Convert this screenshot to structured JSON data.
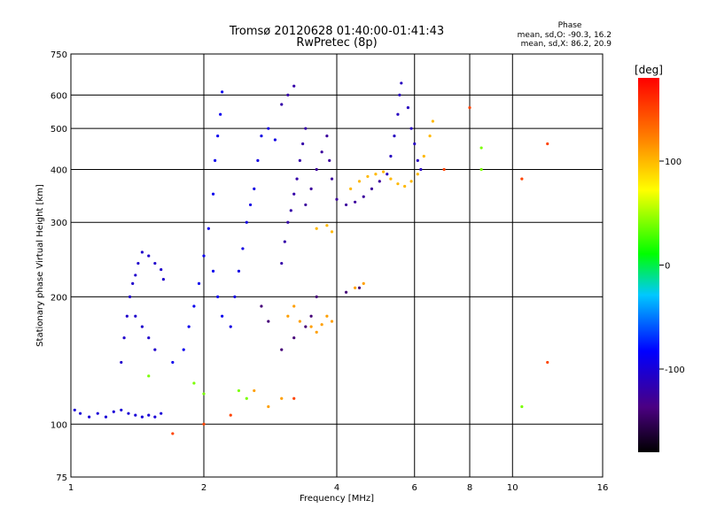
{
  "header": {
    "title": "Tromsø 20120628 01:40:00-01:41:43",
    "subtitle": "RwPretec (8p)",
    "phase_title": "Phase",
    "phase_line_o": "mean, sd,O: -90.3, 16.2",
    "phase_line_x": "mean, sd,X:  86.2, 20.9"
  },
  "chart_data": {
    "type": "scatter",
    "xlabel": "Frequency [MHz]",
    "ylabel": "Stationary phase Virtual Height [km]",
    "x_scale": "log",
    "y_scale": "log",
    "xlim": [
      1,
      16
    ],
    "ylim": [
      75,
      750
    ],
    "x_ticks": [
      1,
      2,
      4,
      6,
      8,
      10,
      16
    ],
    "y_ticks": [
      75,
      100,
      200,
      300,
      400,
      500,
      600,
      750
    ],
    "grid": true,
    "grid_x": [
      2,
      4,
      6,
      8,
      10
    ],
    "grid_y": [
      100,
      200,
      300,
      400,
      500,
      600
    ],
    "colorbar": {
      "label": "[deg]",
      "range": [
        -180,
        180
      ],
      "ticks": [
        100,
        0,
        -100
      ],
      "colormap": "rainbow"
    },
    "series": [
      {
        "color_deg": -100,
        "points": [
          [
            1.02,
            108
          ],
          [
            1.05,
            106
          ],
          [
            1.1,
            104
          ],
          [
            1.15,
            106
          ],
          [
            1.2,
            104
          ],
          [
            1.25,
            107
          ],
          [
            1.3,
            108
          ],
          [
            1.35,
            106
          ],
          [
            1.4,
            105
          ],
          [
            1.45,
            104
          ],
          [
            1.5,
            105
          ],
          [
            1.55,
            104
          ],
          [
            1.6,
            106
          ]
        ]
      },
      {
        "color_deg": -105,
        "points": [
          [
            1.3,
            140
          ],
          [
            1.32,
            160
          ],
          [
            1.34,
            180
          ],
          [
            1.36,
            200
          ],
          [
            1.38,
            215
          ],
          [
            1.4,
            225
          ],
          [
            1.42,
            240
          ],
          [
            1.45,
            255
          ],
          [
            1.5,
            250
          ],
          [
            1.55,
            240
          ],
          [
            1.6,
            232
          ],
          [
            1.62,
            220
          ],
          [
            1.4,
            180
          ],
          [
            1.45,
            170
          ],
          [
            1.5,
            160
          ],
          [
            1.55,
            150
          ]
        ]
      },
      {
        "color_deg": -90,
        "points": [
          [
            1.7,
            140
          ],
          [
            1.8,
            150
          ],
          [
            1.85,
            170
          ],
          [
            1.9,
            190
          ],
          [
            1.95,
            215
          ],
          [
            2.0,
            250
          ],
          [
            2.05,
            290
          ],
          [
            2.1,
            350
          ],
          [
            2.12,
            420
          ],
          [
            2.15,
            480
          ],
          [
            2.18,
            540
          ],
          [
            2.2,
            610
          ],
          [
            2.1,
            230
          ],
          [
            2.15,
            200
          ],
          [
            2.2,
            180
          ]
        ]
      },
      {
        "color_deg": -95,
        "points": [
          [
            2.3,
            170
          ],
          [
            2.35,
            200
          ],
          [
            2.4,
            230
          ],
          [
            2.45,
            260
          ],
          [
            2.5,
            300
          ],
          [
            2.55,
            330
          ],
          [
            2.6,
            360
          ],
          [
            2.65,
            420
          ],
          [
            2.7,
            480
          ],
          [
            2.8,
            500
          ],
          [
            2.9,
            470
          ]
        ]
      },
      {
        "color_deg": -120,
        "points": [
          [
            3.0,
            240
          ],
          [
            3.05,
            270
          ],
          [
            3.1,
            300
          ],
          [
            3.15,
            320
          ],
          [
            3.2,
            350
          ],
          [
            3.25,
            380
          ],
          [
            3.3,
            420
          ],
          [
            3.35,
            460
          ],
          [
            3.4,
            500
          ],
          [
            3.0,
            570
          ],
          [
            3.1,
            600
          ],
          [
            3.2,
            630
          ]
        ]
      },
      {
        "color_deg": -125,
        "points": [
          [
            3.4,
            330
          ],
          [
            3.5,
            360
          ],
          [
            3.6,
            400
          ],
          [
            3.7,
            440
          ],
          [
            3.8,
            480
          ],
          [
            3.85,
            420
          ],
          [
            3.9,
            380
          ],
          [
            4.0,
            340
          ],
          [
            4.2,
            330
          ],
          [
            4.4,
            335
          ],
          [
            4.6,
            345
          ],
          [
            4.8,
            360
          ],
          [
            5.0,
            375
          ]
        ]
      },
      {
        "color_deg": -110,
        "points": [
          [
            5.2,
            390
          ],
          [
            5.3,
            430
          ],
          [
            5.4,
            480
          ],
          [
            5.5,
            540
          ],
          [
            5.55,
            600
          ],
          [
            5.6,
            640
          ],
          [
            5.8,
            560
          ],
          [
            5.9,
            500
          ],
          [
            6.0,
            460
          ],
          [
            6.1,
            420
          ],
          [
            6.2,
            400
          ]
        ]
      },
      {
        "color_deg": 100,
        "points": [
          [
            4.3,
            360
          ],
          [
            4.5,
            375
          ],
          [
            4.7,
            385
          ],
          [
            4.9,
            390
          ],
          [
            5.1,
            395
          ],
          [
            5.3,
            380
          ],
          [
            5.5,
            370
          ],
          [
            5.7,
            365
          ],
          [
            5.9,
            375
          ],
          [
            6.1,
            390
          ],
          [
            6.3,
            430
          ],
          [
            6.5,
            480
          ],
          [
            6.6,
            520
          ],
          [
            3.6,
            290
          ],
          [
            3.8,
            295
          ],
          [
            3.9,
            285
          ]
        ]
      },
      {
        "color_deg": 110,
        "points": [
          [
            3.1,
            180
          ],
          [
            3.2,
            190
          ],
          [
            3.3,
            175
          ],
          [
            3.5,
            170
          ],
          [
            3.6,
            165
          ],
          [
            3.7,
            172
          ],
          [
            3.8,
            180
          ],
          [
            3.9,
            175
          ],
          [
            2.6,
            120
          ],
          [
            2.8,
            110
          ],
          [
            3.0,
            115
          ],
          [
            4.4,
            210
          ],
          [
            4.6,
            215
          ]
        ]
      },
      {
        "color_deg": -140,
        "points": [
          [
            3.0,
            150
          ],
          [
            3.2,
            160
          ],
          [
            3.4,
            170
          ],
          [
            3.6,
            200
          ],
          [
            3.5,
            180
          ],
          [
            4.2,
            205
          ],
          [
            4.5,
            210
          ],
          [
            2.7,
            190
          ],
          [
            2.8,
            175
          ]
        ]
      },
      {
        "color_deg": 40,
        "points": [
          [
            2.4,
            120
          ],
          [
            2.5,
            115
          ],
          [
            1.9,
            125
          ],
          [
            2.0,
            118
          ],
          [
            1.5,
            130
          ],
          [
            8.5,
            450
          ],
          [
            8.5,
            400
          ],
          [
            10.5,
            110
          ]
        ]
      },
      {
        "color_deg": 150,
        "points": [
          [
            1.7,
            95
          ],
          [
            2.0,
            100
          ],
          [
            2.3,
            105
          ],
          [
            3.2,
            115
          ],
          [
            10.5,
            380
          ],
          [
            12,
            140
          ],
          [
            12,
            460
          ],
          [
            7.0,
            400
          ],
          [
            8.0,
            560
          ]
        ]
      }
    ]
  }
}
